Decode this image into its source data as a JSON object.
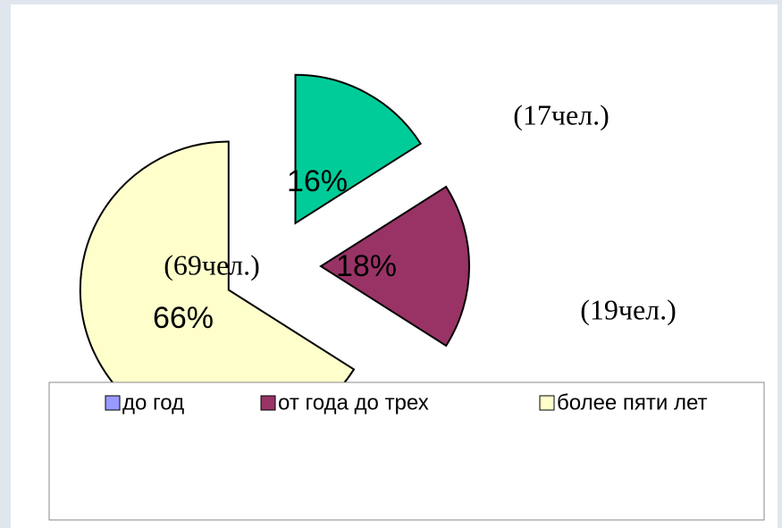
{
  "chart_data": {
    "type": "pie",
    "categories": [
      "до год",
      "от года до трех",
      "более пяти лет"
    ],
    "values": [
      16,
      18,
      66
    ],
    "value_labels": [
      "16%",
      "18%",
      "66%"
    ],
    "colors": [
      "#00cc99",
      "#993366",
      "#ffffcc"
    ],
    "legend_colors": [
      "#9999ff",
      "#993366",
      "#ffffcc"
    ],
    "annotations": [
      "(17чел.)",
      "(19чел.)",
      "(69чел.)"
    ]
  }
}
